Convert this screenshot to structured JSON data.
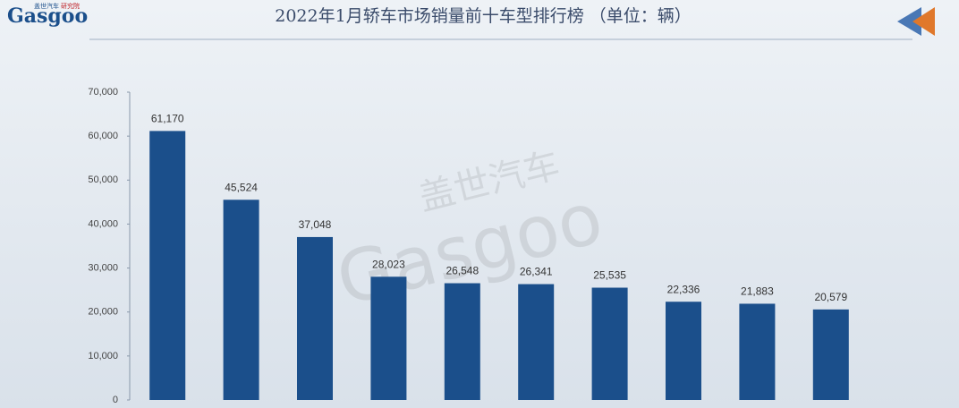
{
  "logo": {
    "name": "Gasgoo",
    "tagline": [
      "盖世汽车",
      "研究院"
    ]
  },
  "watermark": {
    "cn": "盖世汽车",
    "en": "Gasgoo"
  },
  "chart_data": {
    "type": "bar",
    "title": "2022年1月轿车市场销量前十车型排行榜 （单位：辆）",
    "categories": [
      null,
      null,
      null,
      null,
      null,
      null,
      null,
      null,
      null,
      null
    ],
    "values": [
      61170,
      45524,
      37048,
      28023,
      26548,
      26341,
      25535,
      22336,
      21883,
      20579
    ],
    "value_labels": [
      "61,170",
      "45,524",
      "37,048",
      "28,023",
      "26,548",
      "26,341",
      "25,535",
      "22,336",
      "21,883",
      "20,579"
    ],
    "color": "#1b4f8b",
    "ylim": [
      0,
      70000
    ],
    "yticks": [
      0,
      {
        "value": 10000,
        "label": "10,000"
      },
      {
        "value": 20000,
        "label": "20,000"
      },
      {
        "value": 30000,
        "label": "30,000"
      },
      {
        "value": 40000,
        "label": "40,000"
      },
      {
        "value": 50000,
        "label": "50,000"
      },
      {
        "value": 60000,
        "label": "60,000"
      },
      {
        "value": 70000,
        "label": "70,000"
      }
    ],
    "grid": false
  }
}
